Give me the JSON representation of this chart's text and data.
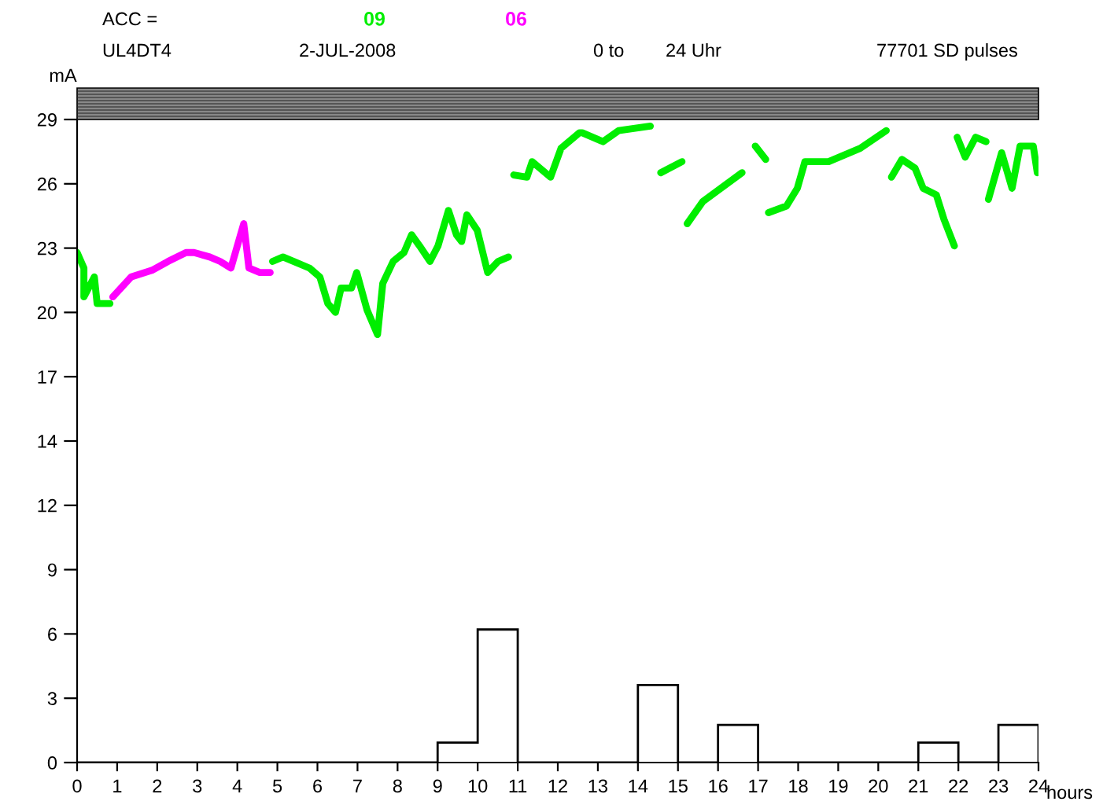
{
  "chart_data": {
    "type": "line",
    "legend_title": "ACC =",
    "annotations": [
      "UL4DT4",
      "2-JUL-2008",
      "0 to",
      "24 Uhr",
      "77701 SD pulses"
    ],
    "xlabel": "hours",
    "ylabel": "mA",
    "xlim": [
      0,
      24
    ],
    "xticks": [
      0,
      1,
      2,
      3,
      4,
      5,
      6,
      7,
      8,
      9,
      10,
      11,
      12,
      13,
      14,
      15,
      16,
      17,
      18,
      19,
      20,
      21,
      22,
      23,
      24
    ],
    "ylim": [
      0,
      29
    ],
    "yticks": [
      0,
      {
        "value": 2.9,
        "label": "3"
      },
      {
        "value": 5.8,
        "label": "6"
      },
      {
        "value": 8.7,
        "label": "9"
      },
      {
        "value": 11.6,
        "label": "12"
      },
      {
        "value": 14.5,
        "label": "14"
      },
      {
        "value": 17.4,
        "label": "17"
      },
      {
        "value": 20.3,
        "label": "20"
      },
      {
        "value": 23.2,
        "label": "23"
      },
      {
        "value": 26.1,
        "label": "26"
      },
      29
    ],
    "grid": false,
    "legend": "top",
    "marker": "none",
    "line_style": "solid",
    "series": [
      {
        "name": "09",
        "color": "#00ee00",
        "x": [
          0.0,
          0.17,
          0.17,
          0.43,
          0.5,
          0.82,
          0.85,
          4.88,
          5.14,
          5.41,
          5.8,
          6.06,
          6.26,
          6.45,
          6.59,
          6.85,
          6.98,
          7.24,
          7.5,
          7.63,
          7.89,
          8.16,
          8.35,
          8.55,
          8.81,
          9.01,
          9.27,
          9.47,
          9.6,
          9.73,
          9.99,
          10.25,
          10.51,
          10.77,
          10.84,
          10.9,
          11.23,
          11.36,
          11.82,
          12.08,
          12.54,
          12.61,
          13.13,
          13.52,
          14.31,
          14.45,
          14.57,
          15.1,
          15.17,
          15.23,
          15.62,
          16.6,
          16.77,
          16.93,
          17.19,
          17.22,
          17.26,
          17.71,
          17.98,
          18.17,
          18.5,
          18.76,
          19.55,
          20.2,
          20.27,
          20.33,
          20.59,
          20.92,
          21.12,
          21.45,
          21.64,
          21.9,
          21.94,
          21.97,
          22.17,
          22.43,
          22.69,
          22.72,
          22.75,
          23.08,
          23.34,
          23.54,
          23.87,
          23.97
        ],
        "values": [
          23.0,
          22.3,
          21.0,
          21.9,
          20.7,
          20.7,
          null,
          22.6,
          22.8,
          22.6,
          22.3,
          21.9,
          20.7,
          20.3,
          21.4,
          21.4,
          22.1,
          20.4,
          19.3,
          21.6,
          22.6,
          23.0,
          23.8,
          23.3,
          22.6,
          23.3,
          24.9,
          23.8,
          23.5,
          24.7,
          24.0,
          22.1,
          22.6,
          22.8,
          null,
          26.5,
          26.4,
          27.1,
          26.4,
          27.7,
          28.4,
          28.4,
          28.0,
          28.5,
          28.7,
          null,
          26.6,
          27.1,
          null,
          24.3,
          25.3,
          26.6,
          null,
          27.8,
          27.2,
          null,
          24.8,
          25.1,
          25.9,
          27.1,
          27.1,
          27.1,
          27.7,
          28.5,
          null,
          26.4,
          27.2,
          26.8,
          25.9,
          25.6,
          24.5,
          23.3,
          null,
          28.2,
          27.3,
          28.2,
          28.0,
          null,
          25.4,
          27.5,
          25.9,
          27.8,
          27.8,
          26.6
        ]
      },
      {
        "name": "06",
        "color": "#ff00ff",
        "x": [
          0.89,
          1.35,
          1.87,
          2.27,
          2.72,
          2.92,
          3.31,
          3.57,
          3.84,
          4.16,
          4.29,
          4.56,
          4.82
        ],
        "values": [
          21.0,
          21.9,
          22.2,
          22.6,
          23.0,
          23.0,
          22.8,
          22.6,
          22.3,
          24.3,
          22.3,
          22.1,
          22.1
        ]
      },
      {
        "type": "histogram",
        "color": "#000000",
        "bins": [
          0,
          1,
          2,
          3,
          4,
          5,
          6,
          7,
          8,
          9,
          10,
          11,
          12,
          13,
          14,
          15,
          16,
          17,
          18,
          19,
          20,
          21,
          22,
          23,
          24
        ],
        "values": [
          0,
          0,
          0,
          0,
          0,
          0,
          0,
          0,
          0,
          0.9,
          6,
          0,
          0,
          0,
          3.5,
          0,
          1.7,
          0,
          0,
          0,
          0,
          0.9,
          0,
          1.7
        ]
      }
    ]
  }
}
